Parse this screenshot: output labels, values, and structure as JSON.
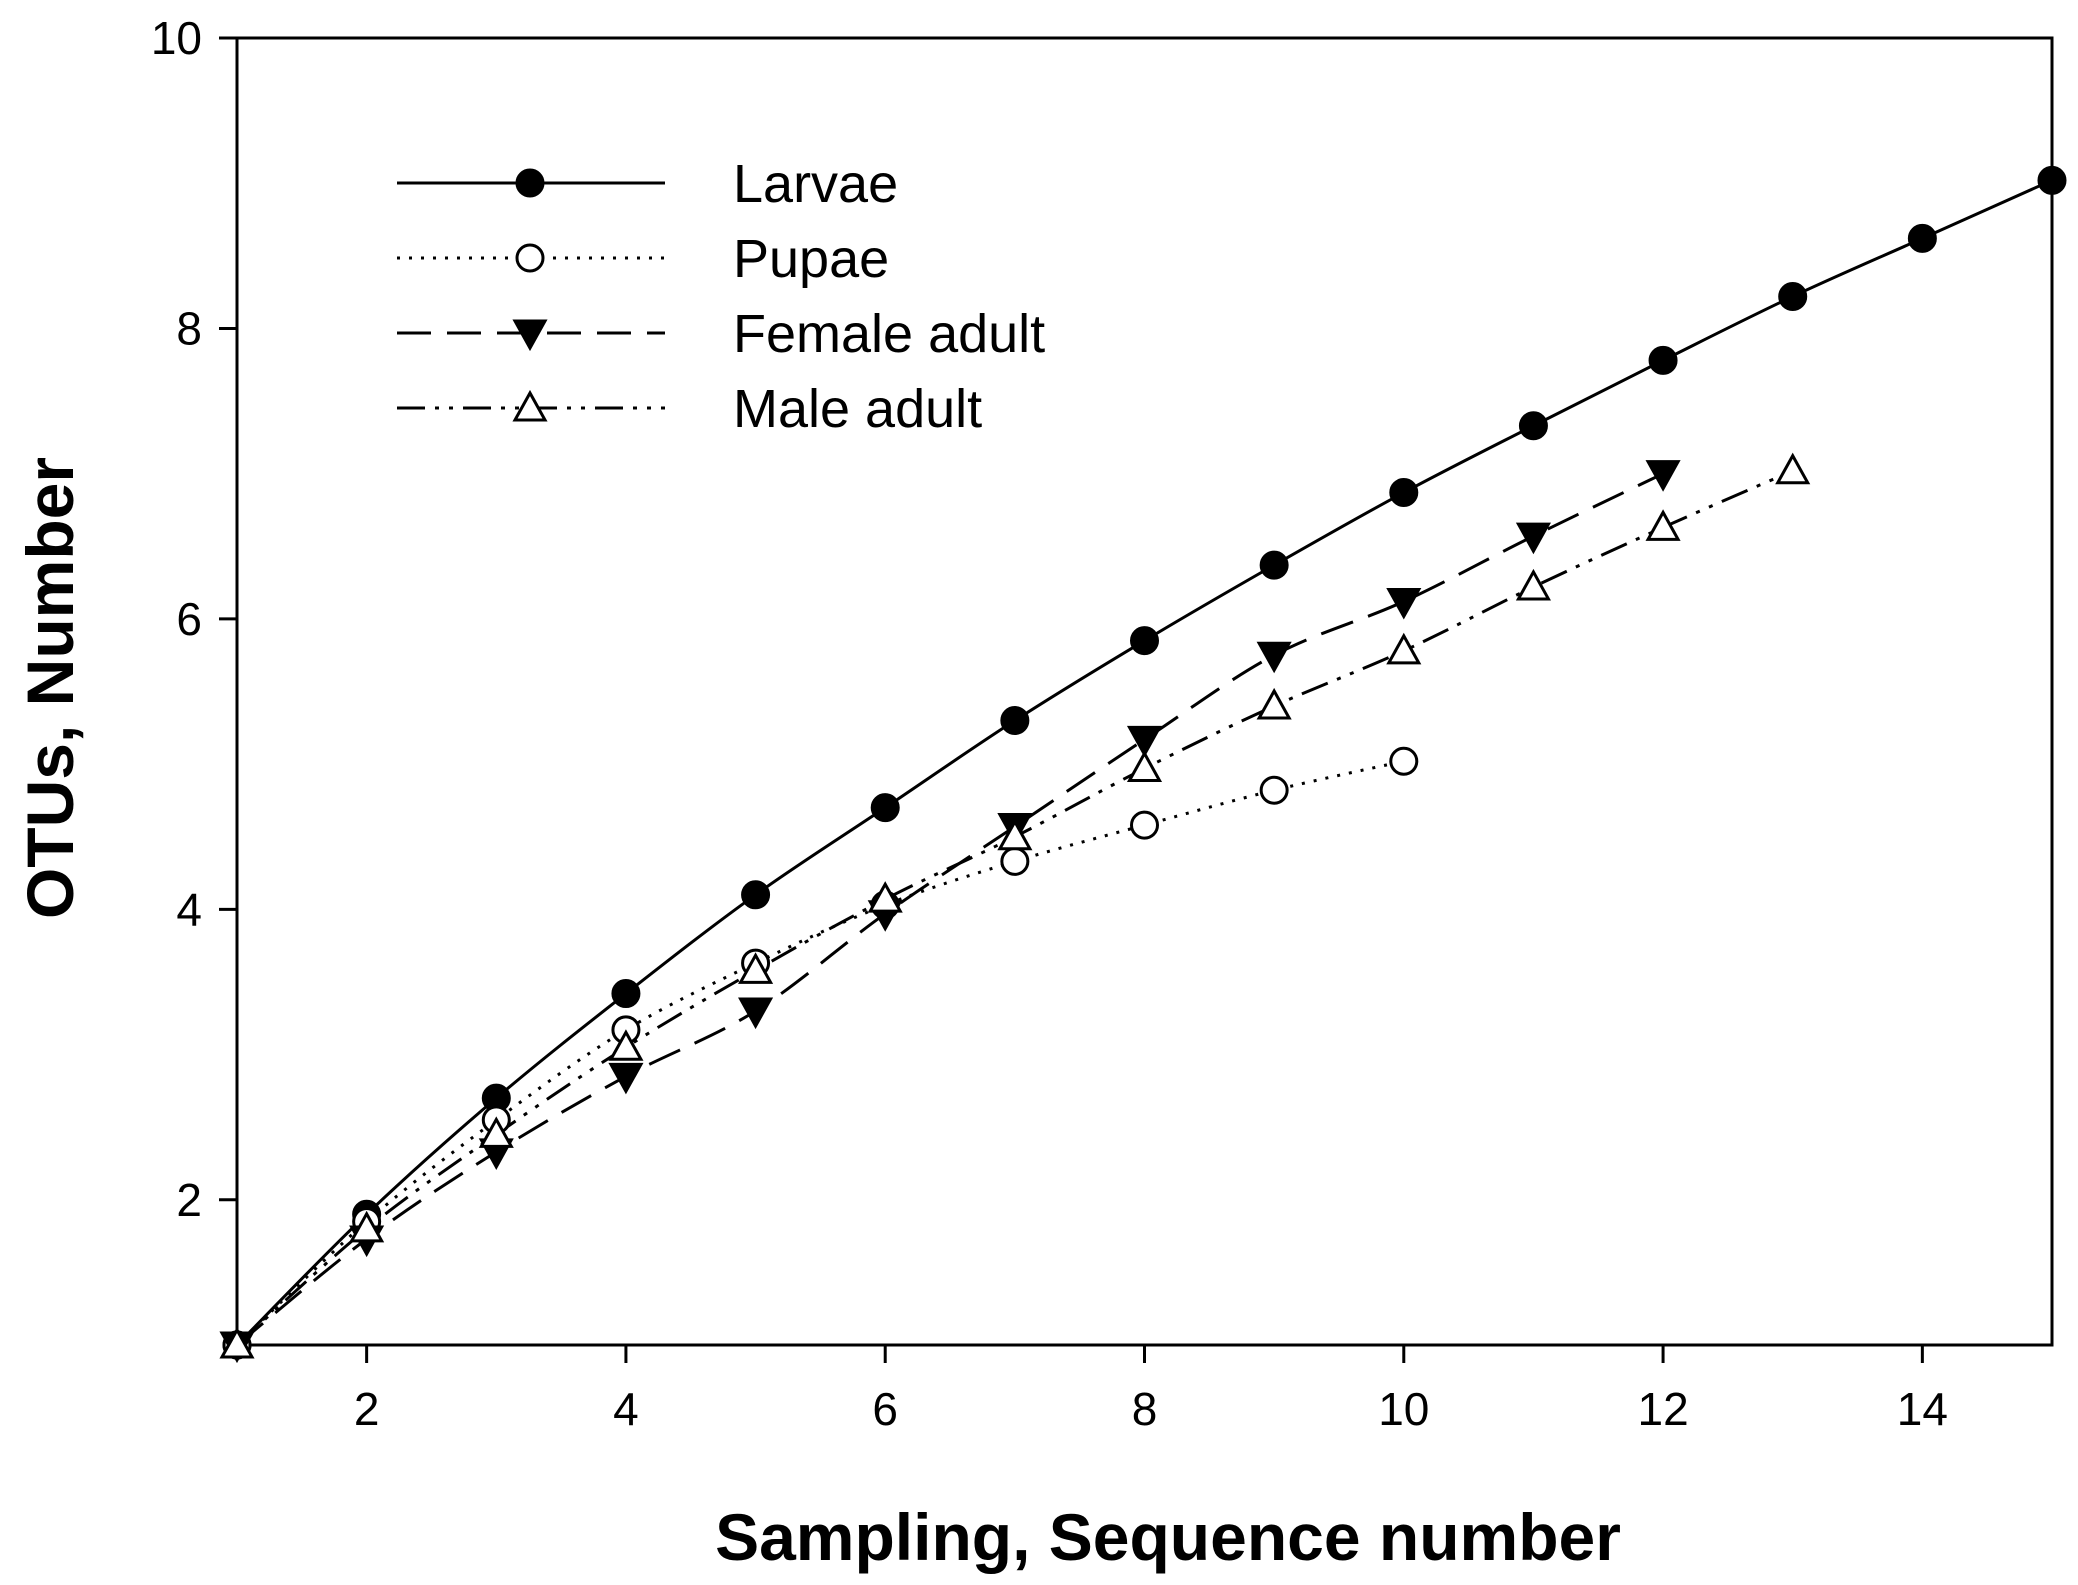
{
  "chart_data": {
    "type": "line",
    "xlabel": "Sampling, Sequence number",
    "ylabel": "OTUs, Number",
    "xlim": [
      1,
      15
    ],
    "ylim": [
      1,
      10
    ],
    "xticks": [
      2,
      4,
      6,
      8,
      10,
      12,
      14
    ],
    "yticks": [
      2,
      4,
      6,
      8,
      10
    ],
    "grid": false,
    "legend_position": "top-left",
    "series": [
      {
        "name": "Larvae",
        "marker": "filled-circle",
        "line_style": "solid",
        "x": [
          1,
          2,
          3,
          4,
          5,
          6,
          7,
          8,
          9,
          10,
          11,
          12,
          13,
          14,
          15
        ],
        "y": [
          1.0,
          1.9,
          2.7,
          3.42,
          4.1,
          4.7,
          5.3,
          5.85,
          6.37,
          6.87,
          7.33,
          7.78,
          8.22,
          8.62,
          9.02
        ]
      },
      {
        "name": "Pupae",
        "marker": "open-circle",
        "line_style": "dotted",
        "x": [
          1,
          2,
          3,
          4,
          5,
          6,
          7,
          8,
          9,
          10
        ],
        "y": [
          1.0,
          1.85,
          2.55,
          3.17,
          3.63,
          4.03,
          4.33,
          4.58,
          4.82,
          5.02
        ]
      },
      {
        "name": "Female adult",
        "marker": "filled-triangle-down",
        "line_style": "dashed",
        "x": [
          1,
          2,
          3,
          4,
          5,
          6,
          7,
          8,
          9,
          10,
          11,
          12
        ],
        "y": [
          1.0,
          1.73,
          2.33,
          2.85,
          3.3,
          3.97,
          4.57,
          5.17,
          5.75,
          6.12,
          6.57,
          7.0
        ]
      },
      {
        "name": "Male adult",
        "marker": "open-triangle-up",
        "line_style": "dash-dot-dot",
        "x": [
          1,
          2,
          3,
          4,
          5,
          6,
          7,
          8,
          9,
          10,
          11,
          12,
          13
        ],
        "y": [
          1.0,
          1.8,
          2.45,
          3.05,
          3.58,
          4.07,
          4.5,
          4.97,
          5.4,
          5.78,
          6.22,
          6.63,
          7.02
        ]
      }
    ]
  }
}
